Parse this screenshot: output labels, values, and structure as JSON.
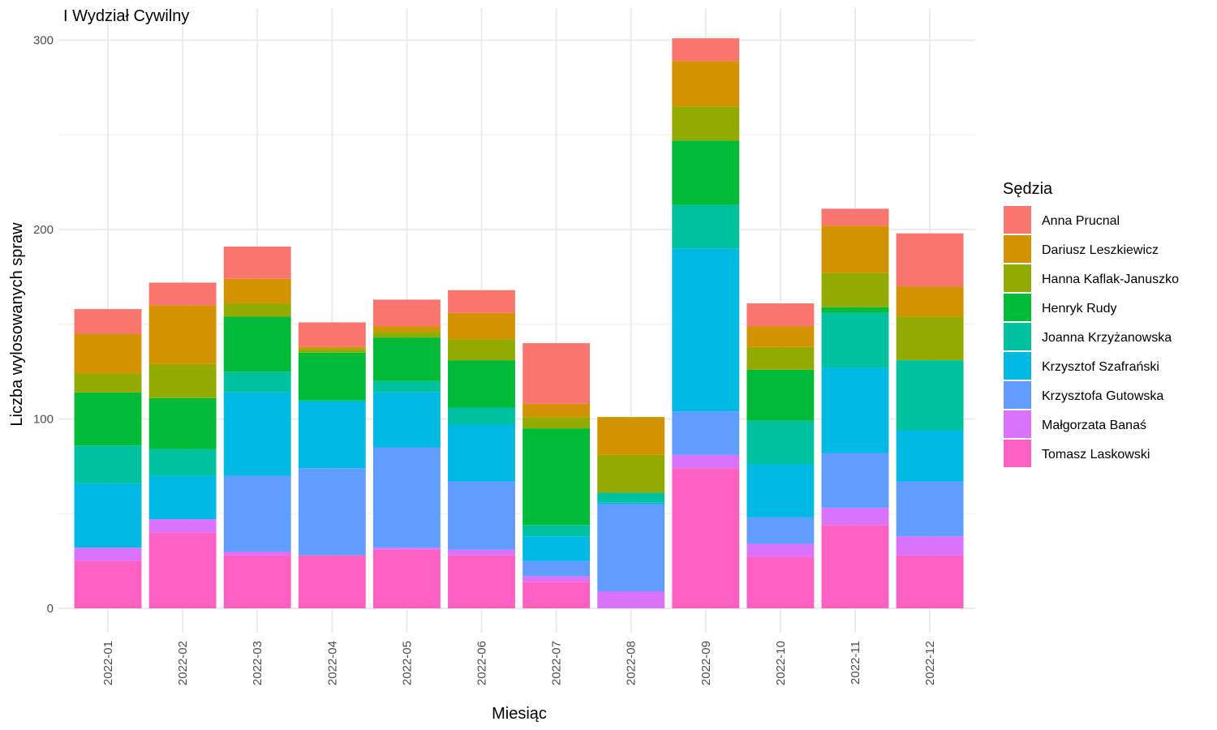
{
  "chart_data": {
    "type": "bar",
    "stacked": true,
    "title": "I Wydział Cywilny",
    "xlabel": "Miesiąc",
    "ylabel": "Liczba wylosowanych spraw",
    "ylim": [
      0,
      310
    ],
    "yticks": [
      0,
      100,
      200,
      300
    ],
    "grid": true,
    "legend_title": "Sędzia",
    "legend_position": "right",
    "categories": [
      "2022-01",
      "2022-02",
      "2022-03",
      "2022-04",
      "2022-05",
      "2022-06",
      "2022-07",
      "2022-08",
      "2022-09",
      "2022-10",
      "2022-11",
      "2022-12"
    ],
    "series": [
      {
        "name": "Anna Prucnal",
        "color": "#F8766D",
        "values": [
          13,
          12,
          17,
          13,
          14,
          12,
          32,
          0,
          12,
          12,
          9,
          28
        ]
      },
      {
        "name": "Dariusz Leszkiewicz",
        "color": "#D39200",
        "values": [
          21,
          31,
          13,
          1,
          3,
          14,
          7,
          20,
          24,
          11,
          25,
          16
        ]
      },
      {
        "name": "Hanna Kaflak-Januszko",
        "color": "#93AA00",
        "values": [
          10,
          18,
          7,
          2,
          3,
          11,
          6,
          20,
          18,
          12,
          18,
          23
        ]
      },
      {
        "name": "Henryk Rudy",
        "color": "#00BA38",
        "values": [
          28,
          27,
          29,
          25,
          23,
          25,
          51,
          0,
          34,
          27,
          3,
          0
        ]
      },
      {
        "name": "Joanna Krzyżanowska",
        "color": "#00C19F",
        "values": [
          20,
          14,
          11,
          1,
          6,
          9,
          6,
          5,
          23,
          23,
          29,
          37
        ]
      },
      {
        "name": "Krzysztof Szafrański",
        "color": "#00B9E3",
        "values": [
          34,
          23,
          44,
          35,
          29,
          30,
          13,
          1,
          86,
          28,
          45,
          27
        ]
      },
      {
        "name": "Krzysztofa Gutowska",
        "color": "#619CFF",
        "values": [
          0,
          0,
          40,
          46,
          53,
          36,
          8,
          46,
          23,
          14,
          29,
          29
        ]
      },
      {
        "name": "Małgorzata Banaś",
        "color": "#DB72FB",
        "values": [
          7,
          7,
          2,
          0,
          1,
          3,
          3,
          9,
          7,
          7,
          9,
          10
        ]
      },
      {
        "name": "Tomasz Laskowski",
        "color": "#FF61C3",
        "values": [
          25,
          40,
          28,
          28,
          31,
          28,
          14,
          0,
          74,
          27,
          44,
          28
        ]
      }
    ]
  }
}
